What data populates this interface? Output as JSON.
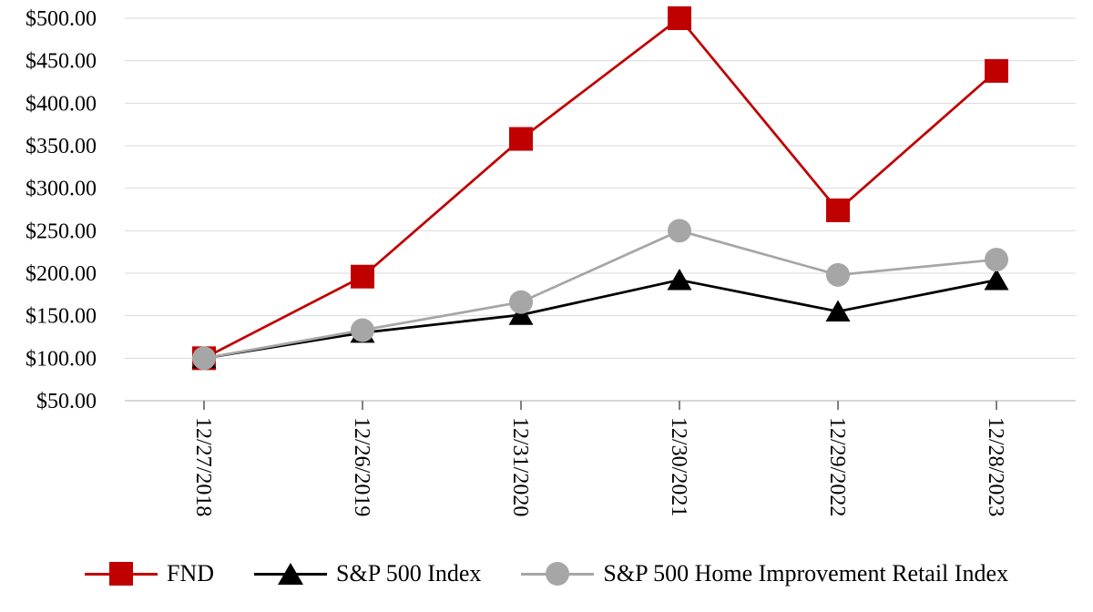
{
  "chart_data": {
    "type": "line",
    "title": "",
    "xlabel": "",
    "ylabel": "",
    "x": [
      "12/27/2018",
      "12/26/2019",
      "12/31/2020",
      "12/30/2021",
      "12/29/2022",
      "12/28/2023"
    ],
    "series": [
      {
        "name": "FND",
        "color": "#C00000",
        "marker": "square",
        "values": [
          100,
          196,
          358,
          500,
          274,
          438
        ]
      },
      {
        "name": "S&P 500 Index",
        "color": "#000000",
        "marker": "triangle",
        "values": [
          100,
          130,
          151,
          192,
          155,
          192
        ]
      },
      {
        "name": "S&P 500 Home Improvement Retail Index",
        "color": "#A6A6A6",
        "marker": "circle",
        "values": [
          100,
          133,
          166,
          250,
          198,
          216
        ]
      }
    ],
    "ylim": [
      50,
      500
    ],
    "ytick_step": 50,
    "ytick_labels": [
      "$50.00",
      "$100.00",
      "$150.00",
      "$200.00",
      "$250.00",
      "$300.00",
      "$350.00",
      "$400.00",
      "$450.00",
      "$500.00"
    ],
    "grid": true,
    "legend_position": "bottom"
  },
  "colors": {
    "background": "#FFFFFF",
    "gridline": "#D9D9D9",
    "axis_line": "#BFBFBF",
    "tick": "#808080",
    "text": "#000000"
  }
}
